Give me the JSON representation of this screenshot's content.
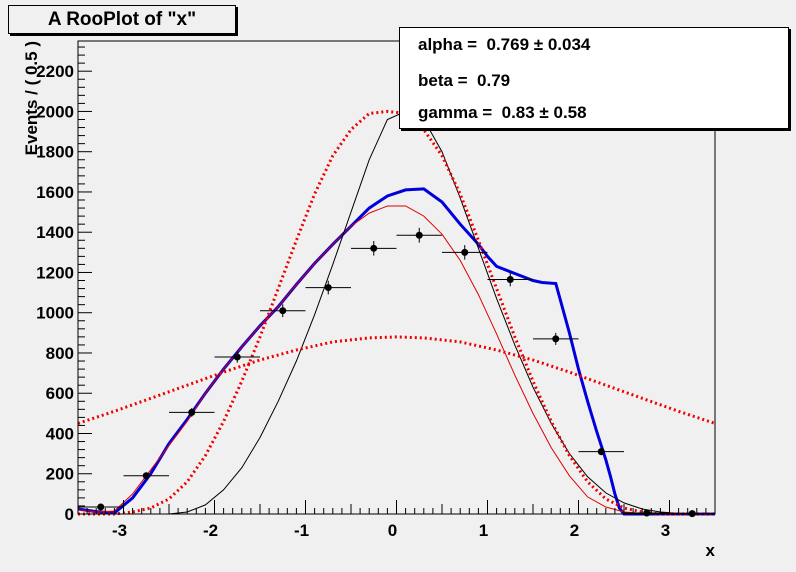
{
  "title": "A RooPlot of \"x\"",
  "params": [
    {
      "label": "alpha =  0.769 ± 0.034"
    },
    {
      "label": "beta =  0.79"
    },
    {
      "label": "gamma =  0.83 ± 0.58"
    }
  ],
  "chart_data": {
    "type": "scatter",
    "title": "A RooPlot of \"x\"",
    "xlabel": "x",
    "ylabel": "Events / ( 0.5 )",
    "xlim": [
      -3.5,
      3.5
    ],
    "ylim": [
      0,
      2350
    ],
    "xticks": [
      -3,
      -2,
      -1,
      0,
      1,
      2,
      3
    ],
    "yticks": [
      0,
      200,
      400,
      600,
      800,
      1000,
      1200,
      1400,
      1600,
      1800,
      2000,
      2200
    ],
    "grid": false,
    "series": [
      {
        "type": "points",
        "x": [
          -3.25,
          -2.75,
          -2.25,
          -1.75,
          -1.25,
          -0.75,
          -0.25,
          0.25,
          0.75,
          1.25,
          1.75,
          2.25,
          2.75,
          3.25
        ],
        "y": [
          35,
          190,
          505,
          780,
          1010,
          1125,
          1320,
          1385,
          1300,
          1165,
          870,
          310,
          5,
          2
        ],
        "xerr": 0.25,
        "yerr": [
          6,
          14,
          22,
          28,
          32,
          34,
          36,
          37,
          36,
          34,
          30,
          18,
          2,
          1
        ],
        "color": "#000000"
      },
      {
        "type": "line",
        "style": "solid",
        "width": 3,
        "color": "#0000dd",
        "x": [
          -3.5,
          -3.3,
          -3.1,
          -2.9,
          -2.7,
          -2.5,
          -2.3,
          -2.1,
          -1.9,
          -1.7,
          -1.5,
          -1.3,
          -1.1,
          -0.9,
          -0.7,
          -0.5,
          -0.3,
          -0.1,
          0.1,
          0.3,
          0.5,
          0.7,
          0.9,
          1.0,
          1.1,
          1.3,
          1.5,
          1.6,
          1.75,
          1.9,
          2.0,
          2.1,
          2.2,
          2.3,
          2.35,
          2.4,
          2.45,
          2.5,
          3.5
        ],
        "y": [
          25,
          12,
          5,
          80,
          200,
          350,
          470,
          600,
          720,
          830,
          935,
          1030,
          1140,
          1245,
          1340,
          1430,
          1520,
          1580,
          1610,
          1615,
          1550,
          1440,
          1340,
          1280,
          1230,
          1195,
          1160,
          1150,
          1145,
          900,
          720,
          560,
          410,
          270,
          190,
          100,
          30,
          0,
          0
        ]
      },
      {
        "type": "line",
        "style": "solid",
        "width": 1,
        "color": "#dd0000",
        "x": [
          -3.5,
          -3.3,
          -3.1,
          -2.9,
          -2.7,
          -2.5,
          -2.3,
          -2.1,
          -1.9,
          -1.7,
          -1.5,
          -1.3,
          -1.1,
          -0.9,
          -0.7,
          -0.5,
          -0.3,
          -0.1,
          0.1,
          0.3,
          0.5,
          0.7,
          0.9,
          1.1,
          1.3,
          1.5,
          1.7,
          1.9,
          2.1,
          2.3,
          2.5,
          2.7,
          2.9,
          3.1,
          3.3,
          3.5
        ],
        "y": [
          22,
          10,
          15,
          100,
          220,
          340,
          460,
          600,
          720,
          830,
          935,
          1030,
          1140,
          1245,
          1340,
          1430,
          1495,
          1530,
          1530,
          1480,
          1390,
          1260,
          1090,
          895,
          690,
          500,
          330,
          190,
          85,
          35,
          10,
          3,
          1,
          0,
          0,
          0
        ]
      },
      {
        "type": "line",
        "style": "solid",
        "width": 1,
        "color": "#000000",
        "x": [
          -3.5,
          -3.3,
          -3.1,
          -2.9,
          -2.7,
          -2.5,
          -2.3,
          -2.1,
          -1.9,
          -1.7,
          -1.5,
          -1.3,
          -1.1,
          -0.9,
          -0.7,
          -0.5,
          -0.3,
          -0.1,
          0.1,
          0.3,
          0.5,
          0.7,
          0.9,
          1.1,
          1.3,
          1.5,
          1.7,
          1.9,
          2.1,
          2.3,
          2.5,
          2.7,
          2.9,
          3.1,
          3.3,
          3.5
        ],
        "y": [
          0,
          0,
          0,
          0,
          0,
          0,
          10,
          45,
          120,
          230,
          380,
          560,
          760,
          990,
          1240,
          1500,
          1760,
          1960,
          2000,
          1960,
          1800,
          1570,
          1320,
          1070,
          840,
          630,
          450,
          300,
          185,
          105,
          55,
          25,
          10,
          3,
          1,
          0
        ]
      },
      {
        "type": "line",
        "style": "dotted",
        "width": 3,
        "color": "#ee0000",
        "x": [
          -3.5,
          -3.1,
          -2.7,
          -2.3,
          -1.9,
          -1.5,
          -1.1,
          -0.7,
          -0.3,
          0.0,
          0.3,
          0.7,
          1.1,
          1.5,
          1.9,
          2.3,
          2.7,
          3.1,
          3.5
        ],
        "y": [
          450,
          510,
          575,
          640,
          705,
          765,
          815,
          855,
          875,
          880,
          875,
          855,
          815,
          765,
          705,
          640,
          575,
          510,
          450
        ]
      },
      {
        "type": "line",
        "style": "dotted",
        "width": 3,
        "color": "#ee0000",
        "x": [
          -3.5,
          -3.3,
          -3.1,
          -2.9,
          -2.7,
          -2.5,
          -2.3,
          -2.1,
          -1.9,
          -1.7,
          -1.5,
          -1.3,
          -1.1,
          -0.9,
          -0.7,
          -0.5,
          -0.3,
          -0.1,
          0.1,
          0.3,
          0.5,
          0.7,
          0.9,
          1.1,
          1.3,
          1.5,
          1.7,
          1.9,
          2.1,
          2.3,
          2.5,
          2.7,
          2.9,
          3.1,
          3.3,
          3.5
        ],
        "y": [
          0,
          0,
          0,
          10,
          30,
          75,
          160,
          290,
          460,
          660,
          880,
          1120,
          1360,
          1590,
          1780,
          1910,
          1990,
          2000,
          1990,
          1910,
          1780,
          1590,
          1360,
          1120,
          880,
          660,
          460,
          290,
          160,
          75,
          30,
          10,
          0,
          0,
          0,
          0
        ]
      }
    ]
  }
}
